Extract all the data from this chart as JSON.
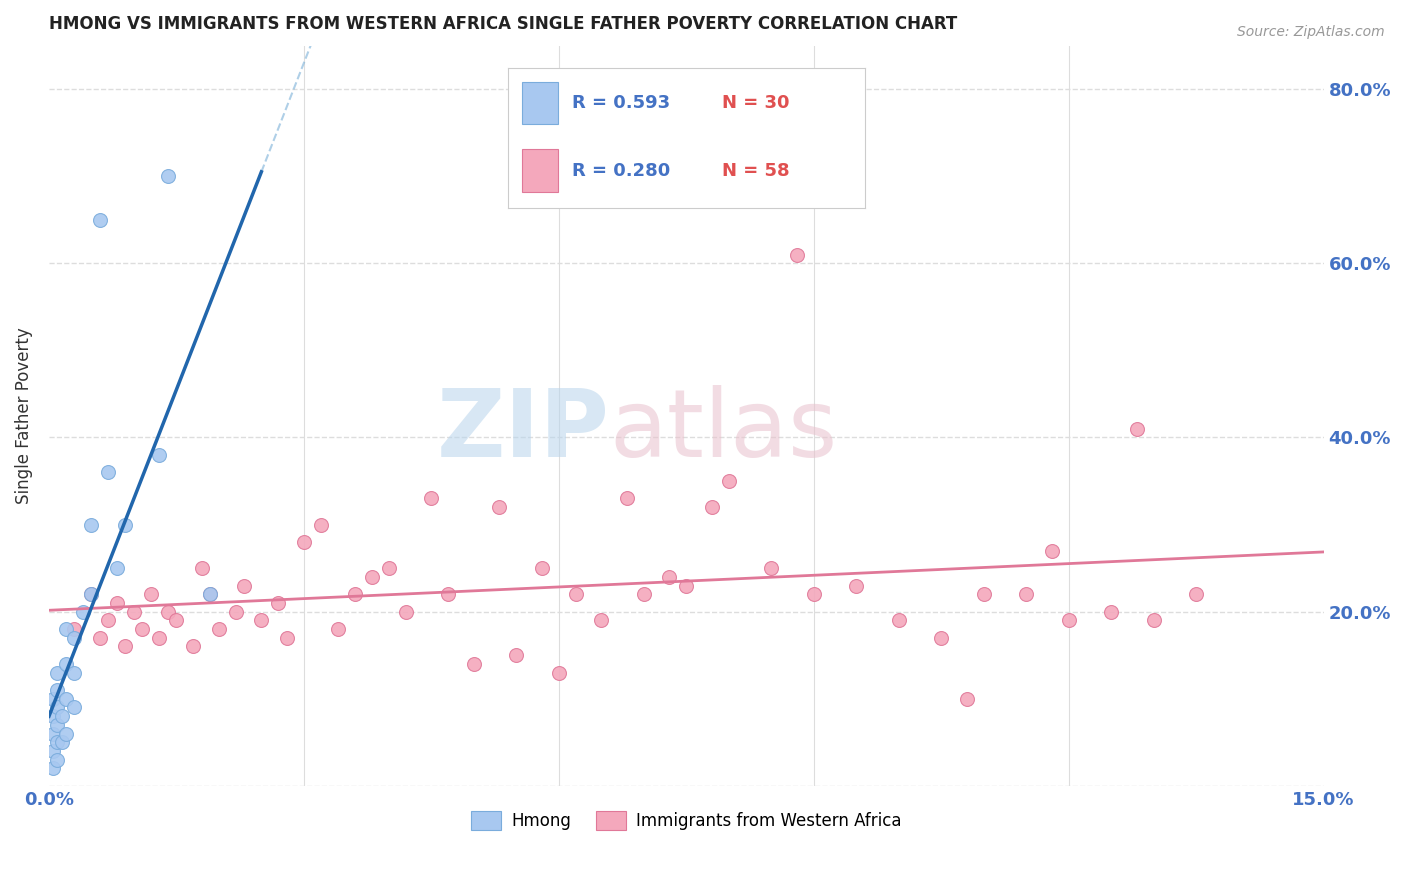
{
  "title": "HMONG VS IMMIGRANTS FROM WESTERN AFRICA SINGLE FATHER POVERTY CORRELATION CHART",
  "source": "Source: ZipAtlas.com",
  "ylabel": "Single Father Poverty",
  "ylabel_right_ticks": [
    "80.0%",
    "60.0%",
    "40.0%",
    "20.0%"
  ],
  "ylabel_right_values": [
    0.8,
    0.6,
    0.4,
    0.2
  ],
  "xlim": [
    0.0,
    0.15
  ],
  "ylim": [
    0.0,
    0.85
  ],
  "legend1_r": "0.593",
  "legend1_n": "30",
  "legend2_r": "0.280",
  "legend2_n": "58",
  "hmong_color": "#a8c8f0",
  "hmong_edge": "#7aacdc",
  "wa_color": "#f4a8bc",
  "wa_edge": "#e07898",
  "line_blue": "#2166ac",
  "line_blue_dash": "#7ab0d8",
  "line_pink": "#e07898",
  "hmong_scatter_x": [
    0.0005,
    0.0005,
    0.0005,
    0.0005,
    0.0005,
    0.001,
    0.001,
    0.001,
    0.001,
    0.001,
    0.001,
    0.0015,
    0.0015,
    0.002,
    0.002,
    0.002,
    0.002,
    0.003,
    0.003,
    0.003,
    0.004,
    0.005,
    0.005,
    0.006,
    0.007,
    0.008,
    0.009,
    0.013,
    0.014,
    0.019
  ],
  "hmong_scatter_y": [
    0.02,
    0.04,
    0.06,
    0.08,
    0.1,
    0.03,
    0.05,
    0.07,
    0.09,
    0.11,
    0.13,
    0.05,
    0.08,
    0.06,
    0.1,
    0.14,
    0.18,
    0.09,
    0.13,
    0.17,
    0.2,
    0.22,
    0.3,
    0.65,
    0.36,
    0.25,
    0.3,
    0.38,
    0.7,
    0.22
  ],
  "wa_scatter_x": [
    0.003,
    0.005,
    0.006,
    0.007,
    0.008,
    0.009,
    0.01,
    0.011,
    0.012,
    0.013,
    0.014,
    0.015,
    0.017,
    0.018,
    0.019,
    0.02,
    0.022,
    0.023,
    0.025,
    0.027,
    0.028,
    0.03,
    0.032,
    0.034,
    0.036,
    0.038,
    0.04,
    0.042,
    0.045,
    0.047,
    0.05,
    0.053,
    0.055,
    0.058,
    0.06,
    0.062,
    0.065,
    0.068,
    0.07,
    0.073,
    0.075,
    0.078,
    0.08,
    0.085,
    0.088,
    0.09,
    0.095,
    0.1,
    0.105,
    0.108,
    0.11,
    0.115,
    0.118,
    0.12,
    0.125,
    0.128,
    0.13,
    0.135
  ],
  "wa_scatter_y": [
    0.18,
    0.22,
    0.17,
    0.19,
    0.21,
    0.16,
    0.2,
    0.18,
    0.22,
    0.17,
    0.2,
    0.19,
    0.16,
    0.25,
    0.22,
    0.18,
    0.2,
    0.23,
    0.19,
    0.21,
    0.17,
    0.28,
    0.3,
    0.18,
    0.22,
    0.24,
    0.25,
    0.2,
    0.33,
    0.22,
    0.14,
    0.32,
    0.15,
    0.25,
    0.13,
    0.22,
    0.19,
    0.33,
    0.22,
    0.24,
    0.23,
    0.32,
    0.35,
    0.25,
    0.61,
    0.22,
    0.23,
    0.19,
    0.17,
    0.1,
    0.22,
    0.22,
    0.27,
    0.19,
    0.2,
    0.41,
    0.19,
    0.22
  ],
  "background_color": "#ffffff",
  "grid_color": "#dddddd"
}
